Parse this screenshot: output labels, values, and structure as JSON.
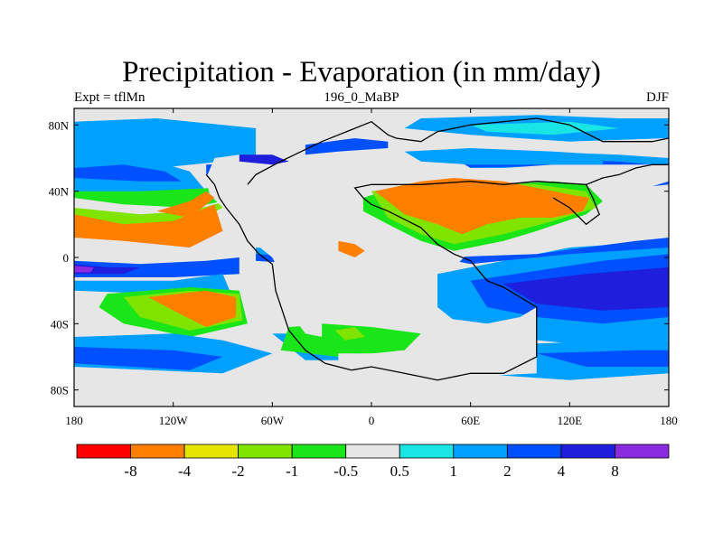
{
  "title": "Precipitation - Evaporation (in mm/day)",
  "subtitle_left": "Expt = tflMn",
  "subtitle_center": "196_0_MaBP",
  "subtitle_right": "DJF",
  "map": {
    "lon_range": [
      -180,
      180
    ],
    "lat_range": [
      -90,
      90
    ],
    "x_ticks": [
      {
        "value": -180,
        "label": "180"
      },
      {
        "value": -120,
        "label": "120W"
      },
      {
        "value": -60,
        "label": "60W"
      },
      {
        "value": 0,
        "label": "0"
      },
      {
        "value": 60,
        "label": "60E"
      },
      {
        "value": 120,
        "label": "120E"
      },
      {
        "value": 180,
        "label": "180"
      }
    ],
    "y_ticks": [
      {
        "value": 80,
        "label": "80N"
      },
      {
        "value": 40,
        "label": "40N"
      },
      {
        "value": 0,
        "label": "0"
      },
      {
        "value": -40,
        "label": "40S"
      },
      {
        "value": -80,
        "label": "80S"
      }
    ]
  },
  "colorbar": {
    "colors": [
      "#ff0000",
      "#ff7f00",
      "#e5e500",
      "#7fe500",
      "#19e519",
      "#e6e6e6",
      "#19e5e5",
      "#00a0ff",
      "#0050ff",
      "#1e1edc",
      "#8a2be2"
    ],
    "labels": [
      "-8",
      "-4",
      "-2",
      "-1",
      "-0.5",
      "0.5",
      "1",
      "2",
      "4",
      "8"
    ]
  }
}
